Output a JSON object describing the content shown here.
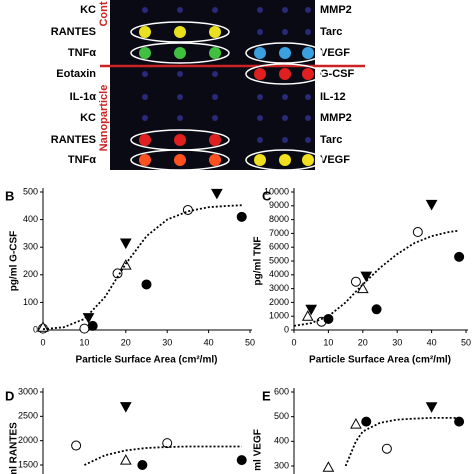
{
  "array": {
    "left_labels": [
      "KC",
      "RANTES",
      "TNFα",
      "Eotaxin",
      "IL-1α",
      "KC",
      "RANTES",
      "TNFα"
    ],
    "right_labels": [
      "MMP2",
      "Tarc",
      "VEGF",
      "G-CSF",
      "IL-12",
      "MMP2",
      "Tarc",
      "VEGF"
    ],
    "group_labels": [
      "Cont",
      "Nanoparticle"
    ]
  },
  "chart_data": [
    {
      "type": "scatter",
      "panel": "B",
      "y_label": "pg/ml G-CSF",
      "x_label": "Particle Surface Area (cm²/ml)",
      "xlim": [
        0,
        50
      ],
      "xticks": [
        0,
        10,
        20,
        30,
        40,
        50
      ],
      "ylim": [
        0,
        500
      ],
      "yticks": [
        0,
        100,
        200,
        300,
        400,
        500
      ],
      "series": [
        {
          "style": "circle-open",
          "color": "#000000",
          "x": [
            0,
            10,
            18,
            35
          ],
          "values": [
            5,
            5,
            205,
            435
          ]
        },
        {
          "style": "circle-filled",
          "color": "#000000",
          "x": [
            12,
            25,
            48
          ],
          "values": [
            15,
            165,
            410
          ]
        },
        {
          "style": "triangle-open",
          "color": "#000000",
          "x": [
            0,
            20
          ],
          "values": [
            10,
            235
          ]
        },
        {
          "style": "triangle-down-filled",
          "color": "#000000",
          "x": [
            11,
            20,
            42
          ],
          "values": [
            45,
            315,
            495
          ]
        },
        {
          "style": "dashed-line",
          "color": "#000000",
          "x": [
            0,
            5,
            10,
            15,
            20,
            25,
            30,
            35,
            40,
            45,
            48
          ],
          "values": [
            3,
            10,
            40,
            120,
            240,
            340,
            400,
            430,
            445,
            450,
            452
          ]
        }
      ]
    },
    {
      "type": "scatter",
      "panel": "C",
      "y_label": "pg/ml TNF",
      "x_label": "Particle Surface Area (cm²/ml)",
      "xlim": [
        0,
        50
      ],
      "xticks": [
        0,
        10,
        20,
        30,
        40,
        50
      ],
      "ylim": [
        0,
        10000
      ],
      "yticks": [
        0,
        1000,
        2000,
        3000,
        4000,
        5000,
        6000,
        7000,
        8000,
        9000,
        10000
      ],
      "series": [
        {
          "style": "circle-open",
          "color": "#000000",
          "x": [
            8,
            18,
            36
          ],
          "values": [
            600,
            3500,
            7100
          ]
        },
        {
          "style": "circle-filled",
          "color": "#000000",
          "x": [
            10,
            24,
            48
          ],
          "values": [
            800,
            1500,
            5300
          ]
        },
        {
          "style": "triangle-open",
          "color": "#000000",
          "x": [
            4,
            20
          ],
          "values": [
            1000,
            3000
          ]
        },
        {
          "style": "triangle-down-filled",
          "color": "#000000",
          "x": [
            5,
            21,
            40
          ],
          "values": [
            1500,
            3900,
            9100
          ]
        },
        {
          "style": "dashed-line",
          "color": "#000000",
          "x": [
            0,
            5,
            10,
            15,
            20,
            25,
            30,
            35,
            40,
            45,
            48
          ],
          "values": [
            300,
            500,
            1000,
            2000,
            3300,
            4500,
            5500,
            6300,
            6800,
            7100,
            7200
          ]
        }
      ]
    },
    {
      "type": "scatter",
      "panel": "D",
      "y_label": "ml RANTES",
      "xlim": [
        0,
        50
      ],
      "ylim": [
        1500,
        3000
      ],
      "yticks": [
        1500,
        2000,
        2500,
        3000
      ],
      "series": [
        {
          "style": "circle-open",
          "color": "#000000",
          "x": [
            8,
            30
          ],
          "values": [
            1900,
            1950
          ]
        },
        {
          "style": "circle-filled",
          "color": "#000000",
          "x": [
            24,
            48
          ],
          "values": [
            1500,
            1600
          ]
        },
        {
          "style": "triangle-open",
          "color": "#000000",
          "x": [
            20
          ],
          "values": [
            1600
          ]
        },
        {
          "style": "triangle-down-filled",
          "color": "#000000",
          "x": [
            20
          ],
          "values": [
            2700
          ]
        },
        {
          "style": "dashed-line",
          "color": "#000000",
          "x": [
            10,
            15,
            20,
            25,
            30,
            35,
            40,
            45,
            48
          ],
          "values": [
            1500,
            1700,
            1800,
            1850,
            1870,
            1880,
            1880,
            1880,
            1880
          ]
        }
      ]
    },
    {
      "type": "scatter",
      "panel": "E",
      "y_label": "ml VEGF",
      "xlim": [
        0,
        50
      ],
      "ylim": [
        300,
        600
      ],
      "yticks": [
        300,
        400,
        500,
        600
      ],
      "series": [
        {
          "style": "circle-open",
          "color": "#000000",
          "x": [
            27
          ],
          "values": [
            370
          ]
        },
        {
          "style": "circle-filled",
          "color": "#000000",
          "x": [
            21,
            48
          ],
          "values": [
            480,
            480
          ]
        },
        {
          "style": "triangle-open",
          "color": "#000000",
          "x": [
            10,
            18
          ],
          "values": [
            295,
            470
          ]
        },
        {
          "style": "triangle-down-filled",
          "color": "#000000",
          "x": [
            40
          ],
          "values": [
            540
          ]
        },
        {
          "style": "dashed-line",
          "color": "#000000",
          "x": [
            15,
            18,
            20,
            25,
            30,
            35,
            40,
            45,
            48
          ],
          "values": [
            300,
            400,
            440,
            475,
            488,
            492,
            495,
            495,
            495
          ]
        }
      ]
    }
  ]
}
